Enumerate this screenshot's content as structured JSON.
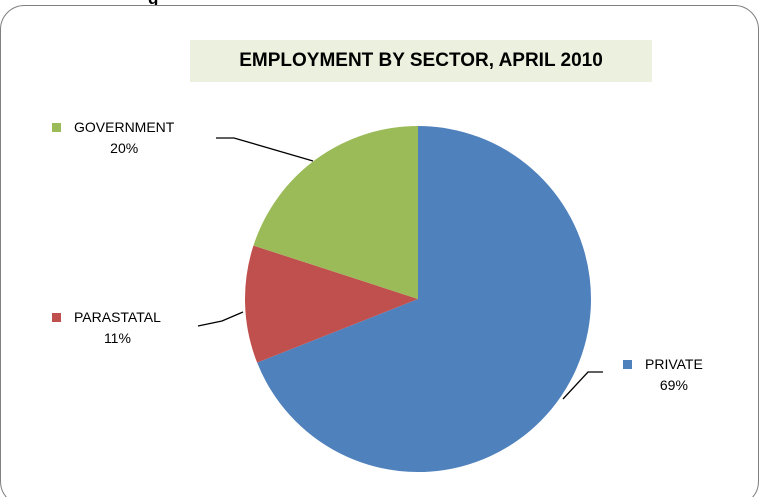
{
  "page": {
    "top_fragment": "g"
  },
  "colors": {
    "title_background": "#EBF1DE",
    "frame_border": "#7F7F7F",
    "leader_line": "#000000"
  },
  "chart_data": {
    "type": "pie",
    "title": "EMPLOYMENT BY SECTOR, APRIL 2010",
    "start_angle_deg_clockwise_from_top": 0,
    "slices": [
      {
        "label": "PRIVATE",
        "value": 69,
        "value_label": "69%",
        "color": "#4F81BD"
      },
      {
        "label": "PARASTATAL",
        "value": 11,
        "value_label": "11%",
        "color": "#C0504D"
      },
      {
        "label": "GOVERNMENT",
        "value": 20,
        "value_label": "20%",
        "color": "#9BBB59"
      }
    ]
  }
}
